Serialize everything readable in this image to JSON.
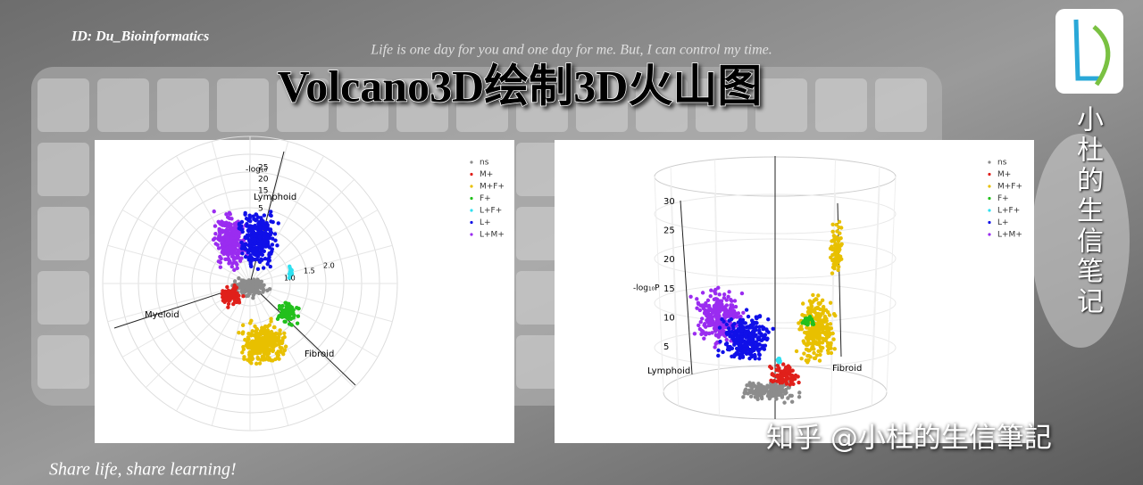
{
  "header": {
    "id": "ID: Du_Bioinformatics",
    "motto": "Life is one day for you and one day for me. But, I can control my time.",
    "title": "Volcano3D绘制3D火山图"
  },
  "side_label": "小杜的生信笔记",
  "footer": {
    "slogan": "Share life, share learning!",
    "watermark": "知乎 @小杜的生信筆記"
  },
  "legend": [
    {
      "label": "ns",
      "color": "#8c8c8c"
    },
    {
      "label": "M+",
      "color": "#e0201b"
    },
    {
      "label": "M+F+",
      "color": "#e8c000"
    },
    {
      "label": "F+",
      "color": "#22c01c"
    },
    {
      "label": "L+F+",
      "color": "#2fe0f0"
    },
    {
      "label": "L+",
      "color": "#1010e8"
    },
    {
      "label": "L+M+",
      "color": "#9a2cf0"
    }
  ],
  "panels": [
    {
      "axis_title": "-log₁₀",
      "radial_ticks": [
        "25",
        "20",
        "15",
        "5"
      ],
      "ratio_ticks": [
        "1.0",
        "1.5",
        "2.0"
      ],
      "axis_labels": [
        "Lymphoid",
        "Myeloid",
        "Fibroid"
      ]
    },
    {
      "axis_title": "-log₁₀P",
      "ticks": [
        "30",
        "25",
        "20",
        "15",
        "10",
        "5"
      ],
      "axis_labels": [
        "Lymphoid",
        "Fibroid"
      ]
    }
  ]
}
